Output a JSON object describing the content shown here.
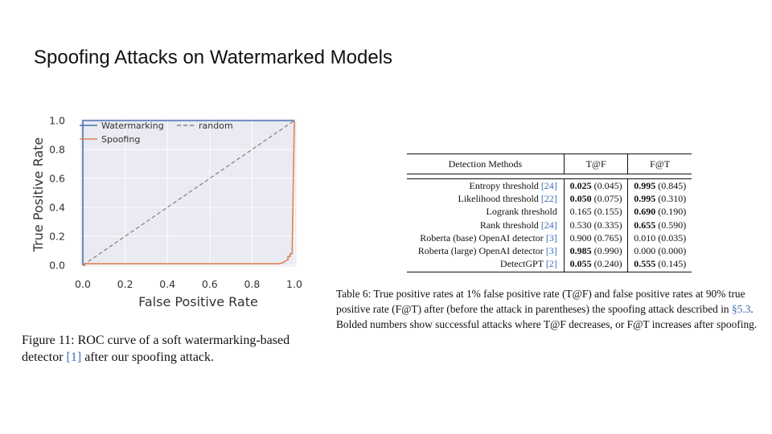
{
  "slide": {
    "title": "Spoofing Attacks on Watermarked Models"
  },
  "figure": {
    "caption_prefix": "Figure 11: ROC curve of a soft watermarking-based detector ",
    "caption_ref": "[1]",
    "caption_suffix": " after our spoofing attack."
  },
  "chart_data": {
    "type": "line",
    "xlabel": "False Positive Rate",
    "ylabel": "True Positive Rate",
    "xlim": [
      0,
      1
    ],
    "ylim": [
      0,
      1
    ],
    "xticks": [
      "0.0",
      "0.2",
      "0.4",
      "0.6",
      "0.8",
      "1.0"
    ],
    "yticks": [
      "0.0",
      "0.2",
      "0.4",
      "0.6",
      "0.8",
      "1.0"
    ],
    "grid": true,
    "legend_position": "top-left",
    "series": [
      {
        "name": "Watermarking",
        "color": "#4c72b0",
        "style": "solid",
        "x": [
          0.0,
          0.0,
          1.0
        ],
        "y": [
          0.0,
          1.0,
          1.0
        ]
      },
      {
        "name": "random",
        "color": "#808080",
        "style": "dashed",
        "x": [
          0.0,
          1.0
        ],
        "y": [
          0.0,
          1.0
        ]
      },
      {
        "name": "Spoofing",
        "color": "#dd8452",
        "style": "solid",
        "x": [
          0.0,
          0.01,
          0.01,
          0.9,
          0.93,
          0.95,
          0.96,
          0.97,
          0.97,
          0.98,
          0.98,
          0.99,
          0.99,
          1.0
        ],
        "y": [
          0.0,
          0.0,
          0.01,
          0.01,
          0.01,
          0.02,
          0.03,
          0.04,
          0.06,
          0.06,
          0.08,
          0.08,
          0.1,
          1.0
        ]
      }
    ]
  },
  "table": {
    "headers": {
      "method": "Detection Methods",
      "tf": "T@F",
      "ft": "F@T"
    },
    "rows": [
      {
        "method": "Entropy threshold ",
        "ref": "[24]",
        "tf": "0.025",
        "tf_paren": " (0.045)",
        "tf_bold": true,
        "ft": "0.995",
        "ft_paren": " (0.845)",
        "ft_bold": true
      },
      {
        "method": "Likelihood threshold ",
        "ref": "[22]",
        "tf": "0.050",
        "tf_paren": " (0.075)",
        "tf_bold": true,
        "ft": "0.995",
        "ft_paren": " (0.310)",
        "ft_bold": true
      },
      {
        "method": "Logrank threshold",
        "ref": "",
        "tf": "0.165",
        "tf_paren": " (0.155)",
        "tf_bold": false,
        "ft": "0.690",
        "ft_paren": " (0.190)",
        "ft_bold": true
      },
      {
        "method": "Rank threshold ",
        "ref": "[24]",
        "tf": "0.530",
        "tf_paren": " (0.335)",
        "tf_bold": false,
        "ft": "0.655",
        "ft_paren": " (0.590)",
        "ft_bold": true
      },
      {
        "method": "Roberta (base) OpenAI detector ",
        "ref": "[3]",
        "tf": "0.900",
        "tf_paren": " (0.765)",
        "tf_bold": false,
        "ft": "0.010",
        "ft_paren": " (0.035)",
        "ft_bold": false
      },
      {
        "method": "Roberta (large) OpenAI detector ",
        "ref": "[3]",
        "tf": "0.985",
        "tf_paren": " (0.990)",
        "tf_bold": true,
        "ft": "0.000",
        "ft_paren": " (0.000)",
        "ft_bold": false
      },
      {
        "method": "DetectGPT ",
        "ref": "[2]",
        "tf": "0.055",
        "tf_paren": " (0.240)",
        "tf_bold": true,
        "ft": "0.555",
        "ft_paren": " (0.145)",
        "ft_bold": true
      }
    ],
    "caption_prefix": "Table 6: True positive rates at 1% false positive rate (T@F) and false positive rates at 90% true positive rate (F@T) after (before the attack in parentheses) the spoofing attack described in ",
    "caption_ref": "§5.3",
    "caption_suffix": ". Bolded numbers show successful attacks where T@F decreases, or F@T increases after spoofing."
  }
}
